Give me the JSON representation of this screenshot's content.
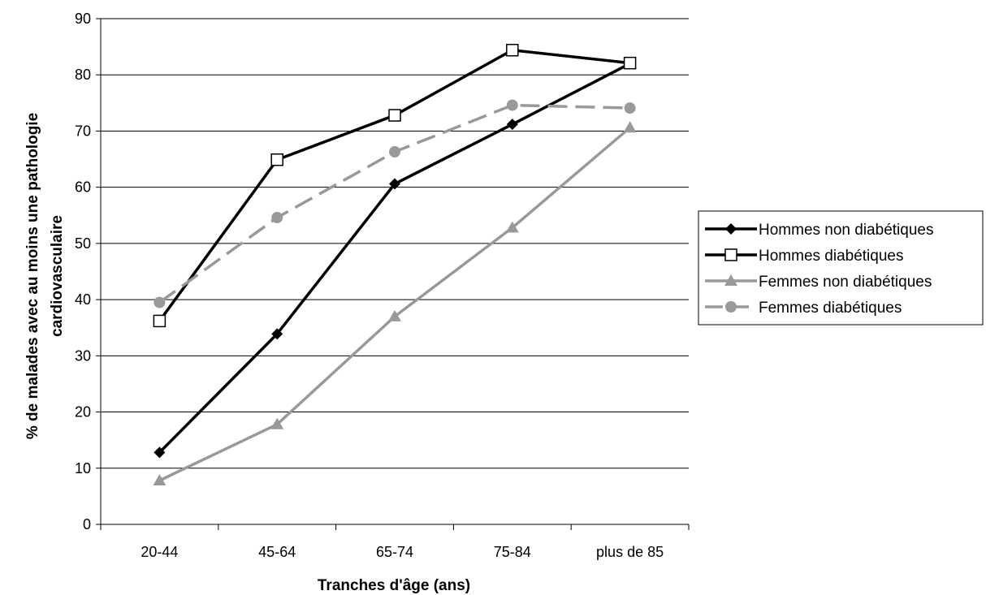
{
  "chart_data": {
    "type": "line",
    "title": "",
    "xlabel": "Tranches d'âge (ans)",
    "ylabel": [
      "% de malades avec au moins une pathologie",
      "cardiovasculaire"
    ],
    "categories": [
      "20-44",
      "45-64",
      "65-74",
      "75-84",
      "plus de 85"
    ],
    "ylim": [
      0,
      90
    ],
    "yticks": [
      0,
      10,
      20,
      30,
      40,
      50,
      60,
      70,
      80,
      90
    ],
    "grid": "horizontal",
    "legend_position": "right",
    "series": [
      {
        "name": "Hommes non diabétiques",
        "values": [
          12.8,
          33.9,
          60.6,
          71.2,
          82.0
        ],
        "color": "#000000",
        "marker": "diamond",
        "dash": "solid"
      },
      {
        "name": "Hommes diabétiques",
        "values": [
          36.2,
          64.9,
          72.8,
          84.4,
          82.1
        ],
        "color": "#000000",
        "marker": "square-open",
        "dash": "solid"
      },
      {
        "name": "Femmes non diabétiques",
        "values": [
          7.8,
          17.8,
          37.0,
          52.8,
          70.6
        ],
        "color": "#999999",
        "marker": "triangle",
        "dash": "solid"
      },
      {
        "name": "Femmes diabétiques",
        "values": [
          39.5,
          54.6,
          66.3,
          74.6,
          74.1
        ],
        "color": "#999999",
        "marker": "circle",
        "dash": "dashed"
      }
    ]
  }
}
